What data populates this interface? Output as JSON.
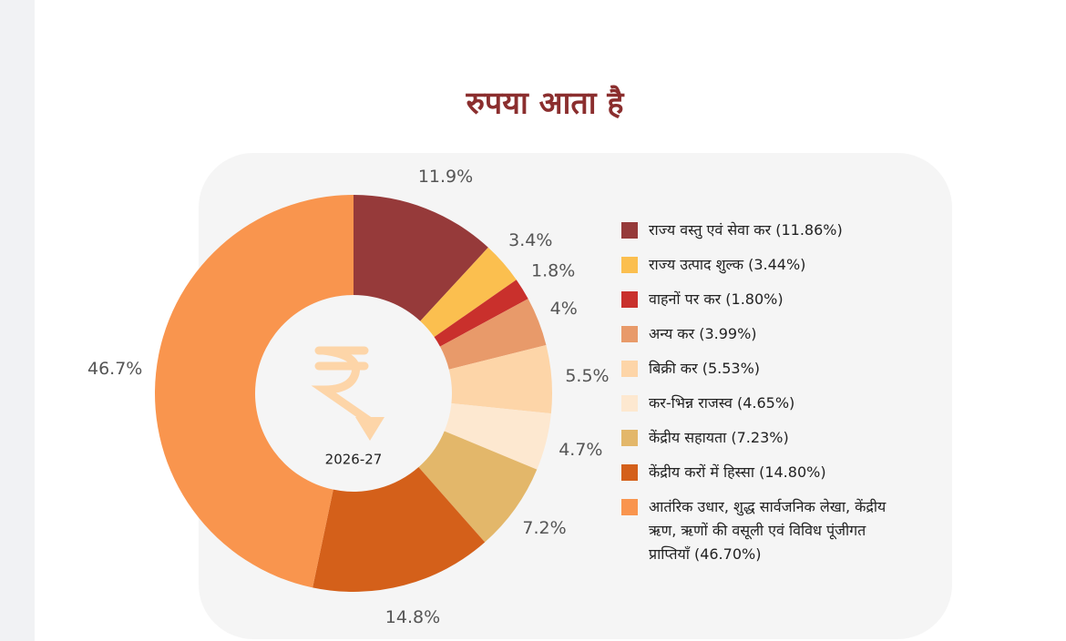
{
  "chart_data": {
    "type": "donut",
    "title": "रुपया आता है",
    "center_label": "2026-27",
    "categories": [
      "राज्य वस्तु एवं सेवा कर  (11.86%)",
      "राज्य उत्पाद शुल्क (3.44%)",
      "वाहनों पर कर (1.80%)",
      "अन्य कर (3.99%)",
      "बिक्री कर (5.53%)",
      "कर-भिन्न राजस्व (4.65%)",
      "केंद्रीय सहायता (7.23%)",
      "केंद्रीय करों में हिस्सा (14.80%)",
      "आतंरिक उधार, शुद्ध सार्वजनिक लेखा, केंद्रीय ऋण, ऋणों की वसूली एवं विविध पूंजीगत प्राप्तियाँ  (46.70%)"
    ],
    "values": [
      11.86,
      3.44,
      1.8,
      3.99,
      5.53,
      4.65,
      7.23,
      14.8,
      46.7
    ],
    "value_labels": [
      "11.9%",
      "3.4%",
      "1.8%",
      "4%",
      "5.5%",
      "4.7%",
      "7.2%",
      "14.8%",
      "46.7%"
    ],
    "colors": [
      "#963a3a",
      "#fbbf4f",
      "#c9302c",
      "#e89a6a",
      "#fdd5a8",
      "#fde8d0",
      "#e3b76a",
      "#d4601a",
      "#f9954e"
    ],
    "legend": "right"
  }
}
